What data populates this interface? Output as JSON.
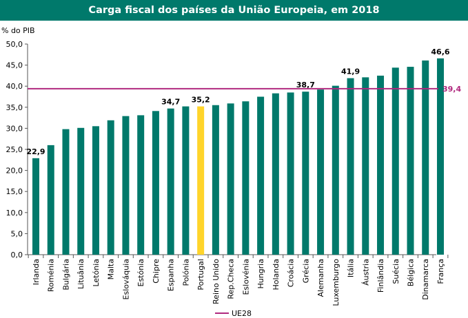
{
  "chart_data": {
    "type": "bar",
    "title": "Carga fiscal dos países da União Europeia, em 2018",
    "ylabel": "% do PIB",
    "xlabel": "",
    "ylim": [
      0,
      50
    ],
    "y_ticks": [
      "0,0",
      "5,0",
      "10,0",
      "15,0",
      "20,0",
      "25,0",
      "30,0",
      "35,0",
      "40,0",
      "45,0",
      "50,0"
    ],
    "categories": [
      "Irlanda",
      "Roménia",
      "Bulgária",
      "Lituânia",
      "Letónia",
      "Malta",
      "Eslováquia",
      "Estónia",
      "Chipre",
      "Espanha",
      "Polónia",
      "Portugal",
      "Reino Unido",
      "Rep.Checa",
      "Eslovénia",
      "Hungria",
      "Holanda",
      "Croácia",
      "Grécia",
      "Alemanha",
      "Luxemburgo",
      "Itália",
      "Áustria",
      "Finlândia",
      "Suécia",
      "Bélgica",
      "Dinamarca",
      "França"
    ],
    "values": [
      22.9,
      26.0,
      29.8,
      30.1,
      30.5,
      31.9,
      32.9,
      33.1,
      34.1,
      34.7,
      35.2,
      35.2,
      35.5,
      35.9,
      36.4,
      37.5,
      38.3,
      38.5,
      38.7,
      39.2,
      40.1,
      41.9,
      42.1,
      42.5,
      44.4,
      44.6,
      46.1,
      46.6
    ],
    "data_labels": [
      {
        "category": "Irlanda",
        "text": "22,9"
      },
      {
        "category": "Espanha",
        "text": "34,7"
      },
      {
        "category": "Portugal",
        "text": "35,2"
      },
      {
        "category": "Grécia",
        "text": "38,7"
      },
      {
        "category": "Itália",
        "text": "41,9"
      },
      {
        "category": "França",
        "text": "46,6"
      }
    ],
    "highlight_category": "Portugal",
    "reference_line": {
      "name": "UE28",
      "value": 39.4,
      "label": "39,4"
    },
    "legend": {
      "position": "bottom",
      "entries": [
        "UE28"
      ]
    },
    "grid": false,
    "colors": {
      "bar": "#00796b",
      "highlight": "#ffd42a",
      "reference": "#b0287e",
      "header": "#00796b"
    }
  }
}
